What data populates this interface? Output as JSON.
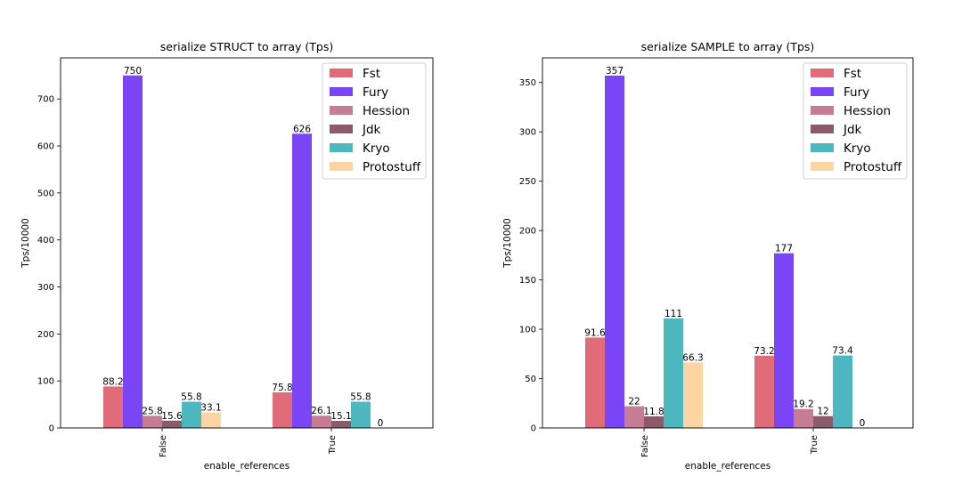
{
  "chart_data": [
    {
      "type": "bar",
      "title": "serialize STRUCT to array (Tps)",
      "xlabel": "enable_references",
      "ylabel": "Tps/10000",
      "categories": [
        "False",
        "True"
      ],
      "ylim": [
        0,
        787.5
      ],
      "yticks": [
        0,
        100,
        200,
        300,
        400,
        500,
        600,
        700
      ],
      "series": [
        {
          "name": "Fst",
          "color": "#e06c7a",
          "values": [
            88.2,
            75.8
          ],
          "labels": [
            "88.2",
            "75.8"
          ]
        },
        {
          "name": "Fury",
          "color": "#7a45f5",
          "values": [
            750,
            626
          ],
          "labels": [
            "750",
            "626"
          ]
        },
        {
          "name": "Hession",
          "color": "#c77c96",
          "values": [
            25.8,
            26.1
          ],
          "labels": [
            "25.8",
            "26.1"
          ]
        },
        {
          "name": "Jdk",
          "color": "#8b5a6b",
          "values": [
            15.6,
            15.1
          ],
          "labels": [
            "15.6",
            "15.1"
          ]
        },
        {
          "name": "Kryo",
          "color": "#4db8bf",
          "values": [
            55.8,
            55.8
          ],
          "labels": [
            "55.8",
            "55.8"
          ]
        },
        {
          "name": "Protostuff",
          "color": "#fdd5a2",
          "values": [
            33.1,
            0
          ],
          "labels": [
            "33.1",
            "0"
          ]
        }
      ],
      "legend_position": "top-right"
    },
    {
      "type": "bar",
      "title": "serialize SAMPLE to array (Tps)",
      "xlabel": "enable_references",
      "ylabel": "Tps/10000",
      "categories": [
        "False",
        "True"
      ],
      "ylim": [
        0,
        375
      ],
      "yticks": [
        0,
        50,
        100,
        150,
        200,
        250,
        300,
        350
      ],
      "series": [
        {
          "name": "Fst",
          "color": "#e06c7a",
          "values": [
            91.6,
            73.2
          ],
          "labels": [
            "91.6",
            "73.2"
          ]
        },
        {
          "name": "Fury",
          "color": "#7a45f5",
          "values": [
            357,
            177
          ],
          "labels": [
            "357",
            "177"
          ]
        },
        {
          "name": "Hession",
          "color": "#c77c96",
          "values": [
            22,
            19.2
          ],
          "labels": [
            "22",
            "19.2"
          ]
        },
        {
          "name": "Jdk",
          "color": "#8b5a6b",
          "values": [
            11.8,
            12
          ],
          "labels": [
            "11.8",
            "12"
          ]
        },
        {
          "name": "Kryo",
          "color": "#4db8bf",
          "values": [
            111,
            73.4
          ],
          "labels": [
            "111",
            "73.4"
          ]
        },
        {
          "name": "Protostuff",
          "color": "#fdd5a2",
          "values": [
            66.3,
            0
          ],
          "labels": [
            "66.3",
            "0"
          ]
        }
      ],
      "legend_position": "top-right"
    }
  ]
}
